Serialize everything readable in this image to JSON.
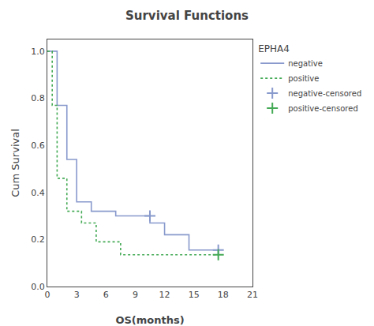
{
  "chart_data": {
    "type": "step",
    "title": "Survival Functions",
    "xlabel": "OS(months)",
    "ylabel": "Cum Survival",
    "legend_title": "EPHA4",
    "xlim": [
      0,
      21
    ],
    "xticks": [
      0,
      3,
      6,
      9,
      12,
      15,
      18,
      21
    ],
    "ylim": [
      0.0,
      1.05
    ],
    "yticks": [
      {
        "value": 0.0,
        "label": "0.0"
      },
      0.2,
      0.4,
      0.6,
      0.8,
      {
        "value": 1.0,
        "label": "1.0"
      }
    ],
    "grid": false,
    "legend": "right",
    "series": [
      {
        "name": "negative",
        "type": "step",
        "color": "#8899cc",
        "line_style": "solid",
        "x": [
          0,
          1.0,
          1.0,
          2.0,
          2.0,
          3.0,
          3.0,
          4.5,
          4.5,
          7.0,
          7.0,
          10.5,
          10.5,
          12.0,
          12.0,
          14.5,
          14.5,
          17.5
        ],
        "values": [
          1.0,
          1.0,
          0.77,
          0.77,
          0.54,
          0.54,
          0.36,
          0.36,
          0.32,
          0.32,
          0.3,
          0.3,
          0.27,
          0.27,
          0.22,
          0.22,
          0.155,
          0.155
        ]
      },
      {
        "name": "positive",
        "type": "step",
        "color": "#44aa55",
        "line_style": "dotted",
        "x": [
          0,
          0.5,
          0.5,
          1.0,
          1.0,
          2.0,
          2.0,
          3.5,
          3.5,
          5.0,
          5.0,
          7.5,
          7.5,
          13.0,
          13.0,
          17.5
        ],
        "values": [
          1.0,
          1.0,
          0.77,
          0.77,
          0.46,
          0.46,
          0.32,
          0.32,
          0.27,
          0.27,
          0.19,
          0.19,
          0.135,
          0.135,
          0.135,
          0.135
        ]
      },
      {
        "name": "negative-censored",
        "type": "scatter",
        "color": "#8899cc",
        "marker": "plus",
        "x": [
          10.5,
          17.5
        ],
        "values": [
          0.3,
          0.155
        ]
      },
      {
        "name": "positive-censored",
        "type": "scatter",
        "color": "#44aa55",
        "marker": "plus",
        "x": [
          17.5
        ],
        "values": [
          0.135
        ]
      }
    ]
  }
}
